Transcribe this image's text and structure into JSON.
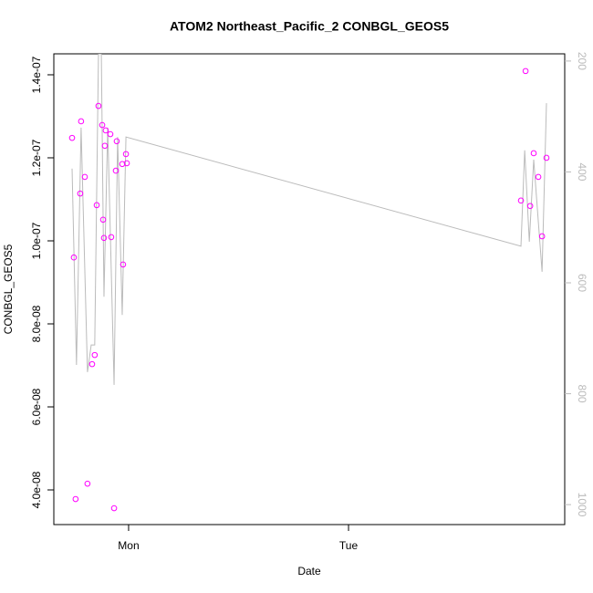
{
  "chart_data": {
    "type": "scatter",
    "title": "ATOM2 Northeast_Pacific_2 CONBGL_GEOS5",
    "xlabel": "Date",
    "ylabel": "CONBGL_GEOS5",
    "xlim": [
      -0.34,
      1.983
    ],
    "xticks": [
      {
        "value": 0,
        "label": "Mon"
      },
      {
        "value": 1,
        "label": "Tue"
      }
    ],
    "ylim": [
      3.165e-08,
      1.4505e-07
    ],
    "yticks": [
      {
        "value": 4e-08,
        "label": "4.0e-08"
      },
      {
        "value": 6e-08,
        "label": "6.0e-08"
      },
      {
        "value": 8e-08,
        "label": "8.0e-08"
      },
      {
        "value": 1e-07,
        "label": "1.0e-07"
      },
      {
        "value": 1.2e-07,
        "label": "1.2e-07"
      },
      {
        "value": 1.4e-07,
        "label": "1.4e-07"
      }
    ],
    "y2lim": [
      1036,
      187
    ],
    "y2ticks": [
      200,
      400,
      600,
      800,
      1000
    ],
    "y2color": "#bbbbbb",
    "series": [
      {
        "color": "#ff00ff",
        "x": [
          -0.257,
          -0.249,
          -0.241,
          -0.22,
          -0.216,
          -0.199,
          -0.187,
          -0.166,
          -0.154,
          -0.145,
          -0.137,
          -0.12,
          -0.116,
          -0.112,
          -0.108,
          -0.104,
          -0.083,
          -0.079,
          -0.066,
          -0.058,
          -0.054,
          -0.029,
          -0.025,
          -0.012,
          -0.008,
          1.784,
          1.805,
          1.826,
          1.842,
          1.863,
          1.88,
          1.9
        ],
        "values": [
          1.248e-07,
          9.6e-08,
          3.78e-08,
          1.114e-07,
          1.288e-07,
          1.154e-07,
          4.15e-08,
          7.03e-08,
          7.25e-08,
          1.086e-07,
          1.325e-07,
          1.279e-07,
          1.051e-07,
          1.007e-07,
          1.229e-07,
          1.266e-07,
          1.257e-07,
          1.009e-07,
          3.56e-08,
          1.169e-07,
          1.24e-07,
          1.185e-07,
          9.43e-08,
          1.209e-07,
          1.187e-07,
          1.097e-07,
          1.409e-07,
          1.084e-07,
          1.211e-07,
          1.154e-07,
          1.011e-07,
          1.2e-07
        ]
      },
      {
        "type": "line",
        "axis": "y2",
        "color": "#bbbbbb",
        "x": [
          -0.257,
          -0.237,
          -0.216,
          -0.187,
          -0.17,
          -0.154,
          -0.137,
          -0.124,
          -0.112,
          -0.095,
          -0.066,
          -0.05,
          -0.029,
          -0.012,
          1.784,
          1.801,
          1.822,
          1.842,
          1.88,
          1.9
        ],
        "values": [
          394,
          748,
          320,
          761,
          712,
          712,
          187,
          187,
          625,
          320,
          784,
          337,
          658,
          337,
          534,
          361,
          526,
          378,
          580,
          276
        ]
      }
    ]
  }
}
